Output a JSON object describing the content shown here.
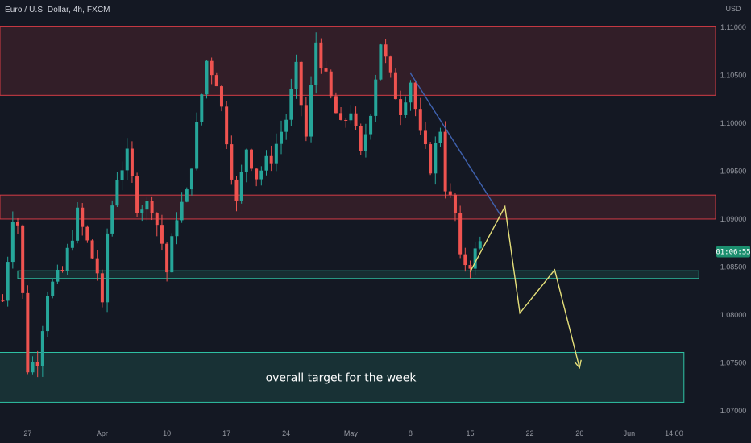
{
  "chart_data": {
    "type": "candlestick",
    "title": "Euro / U.S. Dollar, 4h, FXCM",
    "currency_label": "USD",
    "current_price_tag": "01:06:55",
    "current_price": 1.0866,
    "ylim": [
      1.0685,
      1.1125
    ],
    "y_ticks": [
      {
        "value": 1.11,
        "label": "1.11000"
      },
      {
        "value": 1.105,
        "label": "1.10500"
      },
      {
        "value": 1.1,
        "label": "1.10000"
      },
      {
        "value": 1.095,
        "label": "1.09500"
      },
      {
        "value": 1.09,
        "label": "1.09000"
      },
      {
        "value": 1.085,
        "label": "1.08500"
      },
      {
        "value": 1.08,
        "label": "1.08000"
      },
      {
        "value": 1.075,
        "label": "1.07500"
      },
      {
        "value": 1.07,
        "label": "1.07000"
      }
    ],
    "x_ticks": [
      {
        "index": 5,
        "label": "27"
      },
      {
        "index": 20,
        "label": "Apr"
      },
      {
        "index": 33,
        "label": "10"
      },
      {
        "index": 45,
        "label": "17"
      },
      {
        "index": 57,
        "label": "24"
      },
      {
        "index": 70,
        "label": "May"
      },
      {
        "index": 82,
        "label": "8"
      },
      {
        "index": 94,
        "label": "15"
      },
      {
        "index": 106,
        "label": "22"
      },
      {
        "index": 116,
        "label": "26"
      },
      {
        "index": 126,
        "label": "Jun"
      },
      {
        "index": 135,
        "label": "14:00"
      }
    ],
    "candle_count": 97,
    "waypoints": [
      [
        0,
        1.0815
      ],
      [
        2,
        1.0905
      ],
      [
        3,
        1.0895
      ],
      [
        5,
        1.0745
      ],
      [
        7,
        1.0755
      ],
      [
        9,
        1.0825
      ],
      [
        12,
        1.0845
      ],
      [
        15,
        1.0905
      ],
      [
        17,
        1.0875
      ],
      [
        19,
        1.0845
      ],
      [
        20,
        1.0805
      ],
      [
        21,
        1.0885
      ],
      [
        23,
        1.0945
      ],
      [
        25,
        1.0965
      ],
      [
        27,
        1.0915
      ],
      [
        30,
        1.0915
      ],
      [
        32,
        1.0875
      ],
      [
        33,
        1.0845
      ],
      [
        35,
        1.0905
      ],
      [
        37,
        1.0925
      ],
      [
        39,
        1.0995
      ],
      [
        41,
        1.1065
      ],
      [
        43,
        1.1045
      ],
      [
        45,
        1.0985
      ],
      [
        47,
        1.0915
      ],
      [
        49,
        1.0975
      ],
      [
        51,
        1.0945
      ],
      [
        54,
        1.0965
      ],
      [
        57,
        1.1005
      ],
      [
        59,
        1.1055
      ],
      [
        61,
        1.0985
      ],
      [
        63,
        1.1085
      ],
      [
        66,
        1.1025
      ],
      [
        68,
        1.0995
      ],
      [
        70,
        1.1015
      ],
      [
        72,
        1.0965
      ],
      [
        74,
        1.1015
      ],
      [
        76,
        1.1085
      ],
      [
        78,
        1.1045
      ],
      [
        80,
        1.1015
      ],
      [
        82,
        1.1045
      ],
      [
        84,
        1.0985
      ],
      [
        86,
        1.0955
      ],
      [
        88,
        1.0995
      ],
      [
        89,
        1.0935
      ],
      [
        91,
        1.0905
      ],
      [
        92,
        1.0855
      ],
      [
        94,
        1.0855
      ],
      [
        96,
        1.0875
      ]
    ],
    "resistance_zone_top": {
      "from": 1.1029,
      "to": 1.1101
    },
    "resistance_zone_mid": {
      "from": 1.09,
      "to": 1.0925
    },
    "support_zone": {
      "from": 1.0838,
      "to": 1.0846,
      "x_start_index": 3,
      "x_end_index": 140
    },
    "target_zone": {
      "from": 1.0709,
      "to": 1.0761,
      "x_start_index": -1,
      "x_end_index": 137
    },
    "trendline": {
      "from": [
        82,
        1.1052
      ],
      "to": [
        100,
        1.0905
      ]
    },
    "projection_path": [
      [
        94,
        1.0845
      ],
      [
        101,
        1.0913
      ],
      [
        104,
        1.0802
      ],
      [
        111,
        1.0847
      ],
      [
        116,
        1.0745
      ]
    ],
    "annotation": "overall target for the week",
    "colors": {
      "background": "#141823",
      "bull": "#26a69a",
      "bear": "#ef5350",
      "resistance": "#d43c45",
      "support": "#2fc2a4",
      "trendline": "#3f62b0",
      "projection": "#e6e07a",
      "price_tag": "#1c8f6f"
    }
  }
}
